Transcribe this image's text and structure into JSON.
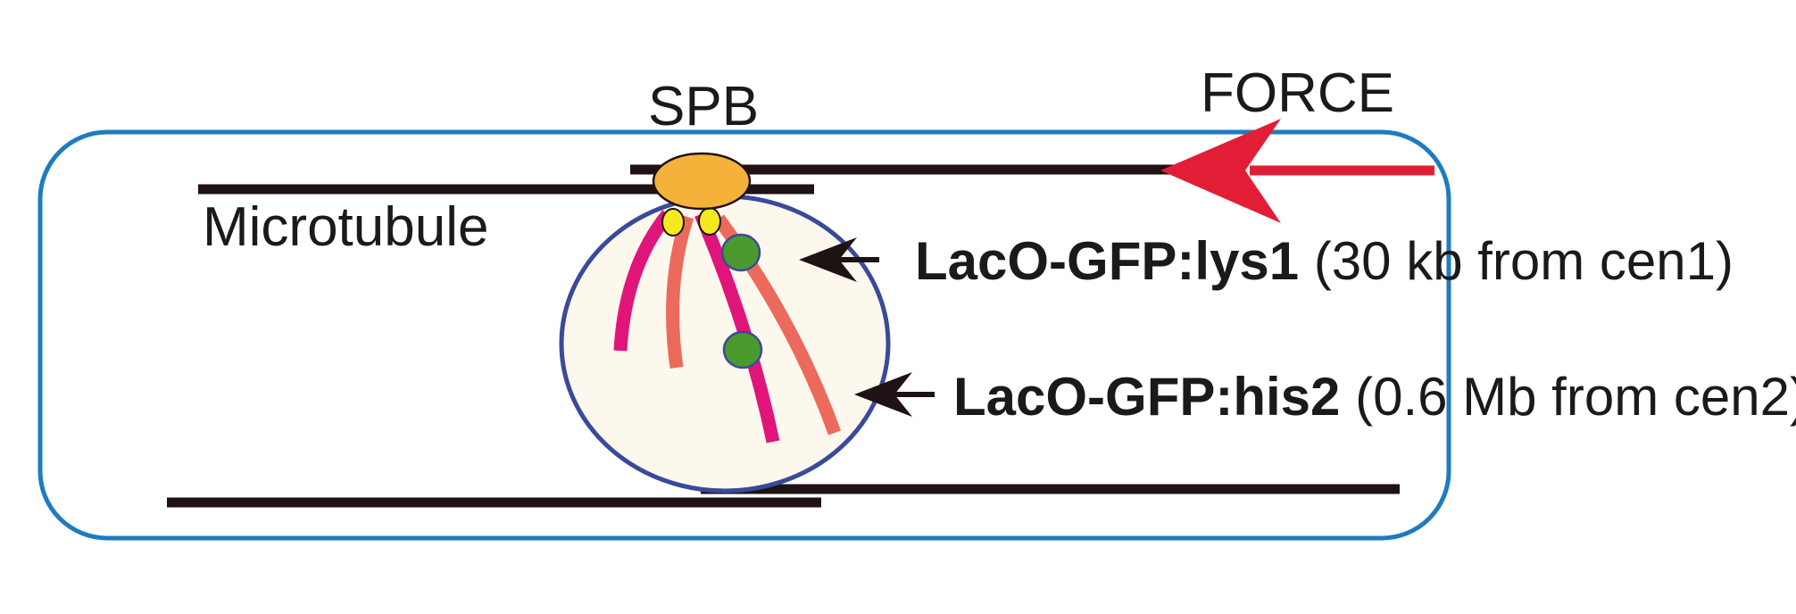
{
  "labels": {
    "spb": "SPB",
    "force": "FORCE",
    "microtubule": "Microtubule"
  },
  "loci": [
    {
      "name": "LacO-GFP:lys1",
      "detail": "(30 kb from cen1)"
    },
    {
      "name": "LacO-GFP:his2",
      "detail": "(0.6 Mb from cen2)"
    }
  ],
  "colors": {
    "cell_outline": "#1f7bbf",
    "nucleus_outline": "#3a4a9a",
    "nucleus_fill": "#fdf8ee",
    "microtubule": "#1e1214",
    "spb": "#f5b23a",
    "kinetochore": "#f5ea1e",
    "chromosome_1": "#e0157a",
    "chromosome_2": "#ec6a5c",
    "gfp_dot": "#4a9a2e",
    "force_arrow": "#e21e36",
    "pointer_arrow": "#1e1214"
  }
}
